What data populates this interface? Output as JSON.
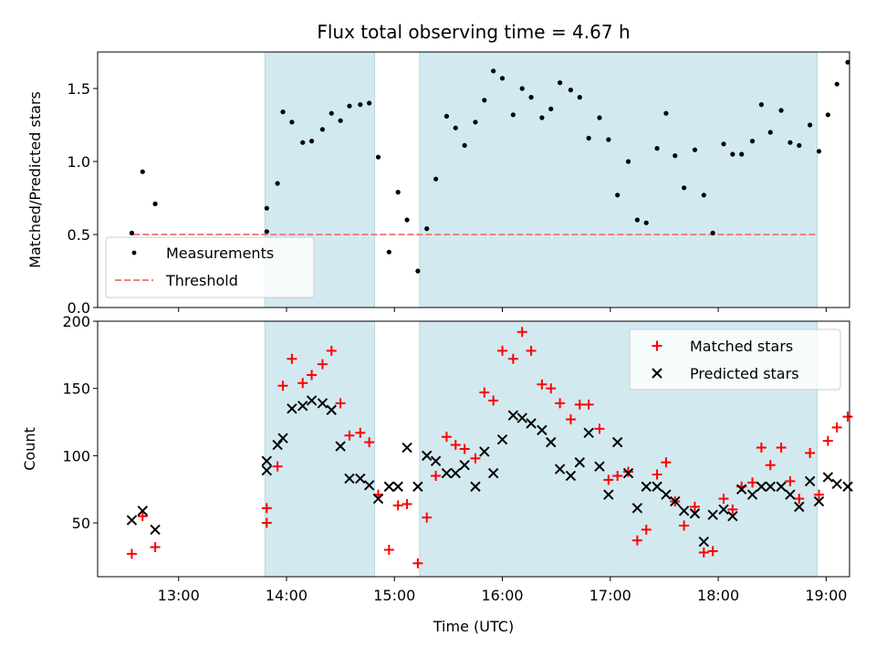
{
  "chart_data": [
    {
      "type": "scatter",
      "title": "Flux total observing time = 4.67 h",
      "xlabel": "",
      "ylabel": "Matched/Predicted stars",
      "ylim": [
        0,
        1.75
      ],
      "yticks": [
        "0.0",
        "0.5",
        "1.0",
        "1.5"
      ],
      "ytick_values": [
        0,
        0.5,
        1.0,
        1.5
      ],
      "xticks_hidden": true,
      "shaded_intervals": [
        [
          "13:48",
          "14:49"
        ],
        [
          "15:14",
          "18:55"
        ]
      ],
      "threshold": {
        "name": "Threshold",
        "value": 0.5,
        "from": "12:35",
        "to": "18:55",
        "color": "#f08080"
      },
      "legend": {
        "placement": "lower-left",
        "entries": [
          "Measurements",
          "Threshold"
        ]
      },
      "series": [
        {
          "name": "Measurements",
          "marker": "dot",
          "color": "#000000",
          "points": [
            [
              "12:34",
              0.51
            ],
            [
              "12:40",
              0.93
            ],
            [
              "12:47",
              0.71
            ],
            [
              "13:49",
              0.52
            ],
            [
              "13:49",
              0.68
            ],
            [
              "13:55",
              0.85
            ],
            [
              "13:58",
              1.34
            ],
            [
              "14:03",
              1.27
            ],
            [
              "14:09",
              1.13
            ],
            [
              "14:14",
              1.14
            ],
            [
              "14:20",
              1.22
            ],
            [
              "14:25",
              1.33
            ],
            [
              "14:30",
              1.28
            ],
            [
              "14:35",
              1.38
            ],
            [
              "14:41",
              1.39
            ],
            [
              "14:46",
              1.4
            ],
            [
              "14:51",
              1.03
            ],
            [
              "14:57",
              0.38
            ],
            [
              "15:02",
              0.79
            ],
            [
              "15:07",
              0.6
            ],
            [
              "15:13",
              0.25
            ],
            [
              "15:18",
              0.54
            ],
            [
              "15:23",
              0.88
            ],
            [
              "15:29",
              1.31
            ],
            [
              "15:34",
              1.23
            ],
            [
              "15:39",
              1.11
            ],
            [
              "15:45",
              1.27
            ],
            [
              "15:50",
              1.42
            ],
            [
              "15:55",
              1.62
            ],
            [
              "16:00",
              1.57
            ],
            [
              "16:06",
              1.32
            ],
            [
              "16:11",
              1.5
            ],
            [
              "16:16",
              1.44
            ],
            [
              "16:22",
              1.3
            ],
            [
              "16:27",
              1.36
            ],
            [
              "16:32",
              1.54
            ],
            [
              "16:38",
              1.49
            ],
            [
              "16:43",
              1.44
            ],
            [
              "16:48",
              1.16
            ],
            [
              "16:54",
              1.3
            ],
            [
              "16:59",
              1.15
            ],
            [
              "17:04",
              0.77
            ],
            [
              "17:10",
              1.0
            ],
            [
              "17:15",
              0.6
            ],
            [
              "17:20",
              0.58
            ],
            [
              "17:26",
              1.09
            ],
            [
              "17:31",
              1.33
            ],
            [
              "17:36",
              1.04
            ],
            [
              "17:41",
              0.82
            ],
            [
              "17:47",
              1.08
            ],
            [
              "17:52",
              0.77
            ],
            [
              "17:57",
              0.51
            ],
            [
              "18:03",
              1.12
            ],
            [
              "18:08",
              1.05
            ],
            [
              "18:13",
              1.05
            ],
            [
              "18:19",
              1.14
            ],
            [
              "18:24",
              1.39
            ],
            [
              "18:29",
              1.2
            ],
            [
              "18:35",
              1.35
            ],
            [
              "18:40",
              1.13
            ],
            [
              "18:45",
              1.11
            ],
            [
              "18:51",
              1.25
            ],
            [
              "18:56",
              1.07
            ],
            [
              "19:01",
              1.32
            ],
            [
              "19:06",
              1.53
            ],
            [
              "19:12",
              1.68
            ]
          ]
        }
      ]
    },
    {
      "type": "scatter",
      "title": "",
      "xlabel": "Time (UTC)",
      "ylabel": "Count",
      "ylim": [
        10,
        200
      ],
      "yticks": [
        "50",
        "100",
        "150",
        "200"
      ],
      "ytick_values": [
        50,
        100,
        150,
        200
      ],
      "xlim": [
        "12:15",
        "19:13"
      ],
      "xticks": [
        "13:00",
        "14:00",
        "15:00",
        "16:00",
        "17:00",
        "18:00",
        "19:00"
      ],
      "shaded_intervals": [
        [
          "13:48",
          "14:49"
        ],
        [
          "15:14",
          "18:55"
        ]
      ],
      "legend": {
        "placement": "top-right",
        "entries": [
          "Matched stars",
          "Predicted stars"
        ]
      },
      "series": [
        {
          "name": "Matched stars",
          "marker": "plus",
          "color": "#ff0000",
          "points": [
            [
              "12:34",
              27
            ],
            [
              "12:40",
              55
            ],
            [
              "12:47",
              32
            ],
            [
              "13:49",
              50
            ],
            [
              "13:49",
              61
            ],
            [
              "13:55",
              92
            ],
            [
              "13:58",
              152
            ],
            [
              "14:03",
              172
            ],
            [
              "14:09",
              154
            ],
            [
              "14:14",
              160
            ],
            [
              "14:20",
              168
            ],
            [
              "14:25",
              178
            ],
            [
              "14:30",
              139
            ],
            [
              "14:35",
              115
            ],
            [
              "14:41",
              117
            ],
            [
              "14:46",
              110
            ],
            [
              "14:51",
              71
            ],
            [
              "14:57",
              30
            ],
            [
              "15:02",
              63
            ],
            [
              "15:07",
              64
            ],
            [
              "15:13",
              20
            ],
            [
              "15:18",
              54
            ],
            [
              "15:23",
              85
            ],
            [
              "15:29",
              114
            ],
            [
              "15:34",
              108
            ],
            [
              "15:39",
              105
            ],
            [
              "15:45",
              98
            ],
            [
              "15:50",
              147
            ],
            [
              "15:55",
              141
            ],
            [
              "16:00",
              178
            ],
            [
              "16:06",
              172
            ],
            [
              "16:11",
              192
            ],
            [
              "16:16",
              178
            ],
            [
              "16:22",
              153
            ],
            [
              "16:27",
              150
            ],
            [
              "16:32",
              139
            ],
            [
              "16:38",
              127
            ],
            [
              "16:43",
              138
            ],
            [
              "16:48",
              138
            ],
            [
              "16:54",
              120
            ],
            [
              "16:59",
              82
            ],
            [
              "17:04",
              85
            ],
            [
              "17:10",
              88
            ],
            [
              "17:15",
              37
            ],
            [
              "17:20",
              45
            ],
            [
              "17:26",
              86
            ],
            [
              "17:31",
              95
            ],
            [
              "17:36",
              66
            ],
            [
              "17:41",
              48
            ],
            [
              "17:47",
              62
            ],
            [
              "17:52",
              28
            ],
            [
              "17:57",
              29
            ],
            [
              "18:03",
              68
            ],
            [
              "18:08",
              60
            ],
            [
              "18:13",
              77
            ],
            [
              "18:19",
              80
            ],
            [
              "18:24",
              106
            ],
            [
              "18:29",
              93
            ],
            [
              "18:35",
              106
            ],
            [
              "18:40",
              81
            ],
            [
              "18:45",
              68
            ],
            [
              "18:51",
              102
            ],
            [
              "18:56",
              71
            ],
            [
              "19:01",
              111
            ],
            [
              "19:06",
              121
            ],
            [
              "19:12",
              129
            ]
          ]
        },
        {
          "name": "Predicted stars",
          "marker": "x",
          "color": "#000000",
          "points": [
            [
              "12:34",
              52
            ],
            [
              "12:40",
              59
            ],
            [
              "12:47",
              45
            ],
            [
              "13:49",
              96
            ],
            [
              "13:49",
              89
            ],
            [
              "13:55",
              108
            ],
            [
              "13:58",
              113
            ],
            [
              "14:03",
              135
            ],
            [
              "14:09",
              137
            ],
            [
              "14:14",
              141
            ],
            [
              "14:20",
              139
            ],
            [
              "14:25",
              134
            ],
            [
              "14:30",
              107
            ],
            [
              "14:35",
              83
            ],
            [
              "14:41",
              83
            ],
            [
              "14:46",
              78
            ],
            [
              "14:51",
              68
            ],
            [
              "14:57",
              77
            ],
            [
              "15:02",
              77
            ],
            [
              "15:07",
              106
            ],
            [
              "15:13",
              77
            ],
            [
              "15:18",
              100
            ],
            [
              "15:23",
              96
            ],
            [
              "15:29",
              87
            ],
            [
              "15:34",
              87
            ],
            [
              "15:39",
              93
            ],
            [
              "15:45",
              77
            ],
            [
              "15:50",
              103
            ],
            [
              "15:55",
              87
            ],
            [
              "16:00",
              112
            ],
            [
              "16:06",
              130
            ],
            [
              "16:11",
              128
            ],
            [
              "16:16",
              124
            ],
            [
              "16:22",
              119
            ],
            [
              "16:27",
              110
            ],
            [
              "16:32",
              90
            ],
            [
              "16:38",
              85
            ],
            [
              "16:43",
              95
            ],
            [
              "16:48",
              117
            ],
            [
              "16:54",
              92
            ],
            [
              "16:59",
              71
            ],
            [
              "17:04",
              110
            ],
            [
              "17:10",
              87
            ],
            [
              "17:15",
              61
            ],
            [
              "17:20",
              77
            ],
            [
              "17:26",
              77
            ],
            [
              "17:31",
              71
            ],
            [
              "17:36",
              66
            ],
            [
              "17:41",
              59
            ],
            [
              "17:47",
              57
            ],
            [
              "17:52",
              36
            ],
            [
              "17:57",
              56
            ],
            [
              "18:03",
              60
            ],
            [
              "18:08",
              55
            ],
            [
              "18:13",
              75
            ],
            [
              "18:19",
              71
            ],
            [
              "18:24",
              77
            ],
            [
              "18:29",
              77
            ],
            [
              "18:35",
              77
            ],
            [
              "18:40",
              71
            ],
            [
              "18:45",
              62
            ],
            [
              "18:51",
              81
            ],
            [
              "18:56",
              66
            ],
            [
              "19:01",
              84
            ],
            [
              "19:06",
              79
            ],
            [
              "19:12",
              77
            ]
          ]
        }
      ]
    }
  ],
  "style": {
    "shade_color": "#d3e9f0",
    "shade_edge": "#b5d7e3",
    "axes_color": "#000000"
  }
}
